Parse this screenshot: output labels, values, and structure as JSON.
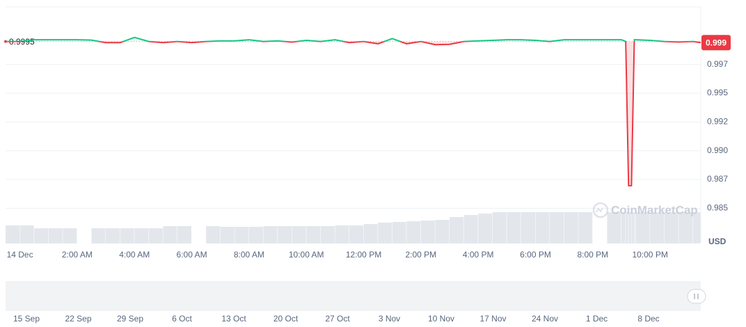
{
  "chart_data": {
    "type": "line",
    "x": [
      -0.5,
      0,
      0.5,
      1,
      1.5,
      2,
      2.5,
      3,
      3.5,
      4,
      4.5,
      5,
      5.5,
      6,
      6.5,
      7,
      7.5,
      8,
      8.5,
      9,
      9.5,
      10,
      10.5,
      11,
      11.5,
      12,
      12.5,
      13,
      13.5,
      14,
      14.5,
      15,
      15.5,
      16,
      16.5,
      17,
      17.5,
      18,
      18.5,
      19,
      19.5,
      20,
      20.5,
      21,
      21.15,
      21.25,
      21.35,
      21.45,
      21.5,
      22,
      22.5,
      23,
      23.5,
      23.77
    ],
    "values": [
      0.9995,
      0.9995,
      0.99965,
      0.99965,
      0.99965,
      0.99965,
      0.99962,
      0.9994,
      0.9994,
      0.99985,
      0.9995,
      0.9994,
      0.9995,
      0.9994,
      0.9995,
      0.99955,
      0.99955,
      0.99965,
      0.9995,
      0.99955,
      0.99945,
      0.9996,
      0.9995,
      0.99965,
      0.9994,
      0.9995,
      0.9993,
      0.99975,
      0.9993,
      0.9995,
      0.99922,
      0.99925,
      0.9995,
      0.99955,
      0.9996,
      0.99965,
      0.99965,
      0.9996,
      0.9995,
      0.99965,
      0.99965,
      0.99965,
      0.99965,
      0.99965,
      0.9995,
      0.98697,
      0.98697,
      0.99965,
      0.99965,
      0.9996,
      0.9995,
      0.99945,
      0.9995,
      0.9994
    ],
    "volume": {
      "color": "#e3e7ec",
      "ylim": [
        0,
        100
      ],
      "values": [
        26,
        26,
        22,
        22,
        22,
        0,
        22,
        22,
        22,
        22,
        22,
        25,
        25,
        0,
        25,
        24,
        24,
        24,
        25,
        25,
        25,
        25,
        25,
        26,
        26,
        28,
        30,
        31,
        32,
        33,
        34,
        38,
        41,
        43,
        45,
        45,
        45,
        45,
        45,
        45,
        45,
        0,
        45,
        45,
        45,
        45,
        45,
        45,
        45,
        45,
        45,
        45,
        45,
        45
      ]
    },
    "up_color": "#16c784",
    "down_color": "#ea3943",
    "baseline": 0.9995,
    "last_price": {
      "value": 0.9994,
      "label": "0.999"
    },
    "xlim": [
      -0.5,
      23.77
    ],
    "xticks": [
      {
        "value": 0,
        "label": "14 Dec"
      },
      {
        "value": 2,
        "label": "2:00 AM"
      },
      {
        "value": 4,
        "label": "4:00 AM"
      },
      {
        "value": 6,
        "label": "6:00 AM"
      },
      {
        "value": 8,
        "label": "8:00 AM"
      },
      {
        "value": 10,
        "label": "10:00 AM"
      },
      {
        "value": 12,
        "label": "12:00 PM"
      },
      {
        "value": 14,
        "label": "2:00 PM"
      },
      {
        "value": 16,
        "label": "4:00 PM"
      },
      {
        "value": 18,
        "label": "6:00 PM"
      },
      {
        "value": 20,
        "label": "8:00 PM"
      },
      {
        "value": 22,
        "label": "10:00 PM"
      }
    ],
    "ylim": [
      0.982,
      1.0025
    ],
    "yticks": [
      {
        "value": 0.9975,
        "label": "0.997"
      },
      {
        "value": 0.995,
        "label": "0.995"
      },
      {
        "value": 0.9925,
        "label": "0.992"
      },
      {
        "value": 0.99,
        "label": "0.990"
      },
      {
        "value": 0.9875,
        "label": "0.987"
      },
      {
        "value": 0.985,
        "label": "0.985"
      }
    ],
    "y_unit": "USD",
    "watermark": "CoinMarketCap",
    "grid": true,
    "navigator": [
      "15 Sep",
      "22 Sep",
      "29 Sep",
      "6 Oct",
      "13 Oct",
      "20 Oct",
      "27 Oct",
      "3 Nov",
      "10 Nov",
      "17 Nov",
      "24 Nov",
      "1 Dec",
      "8 Dec"
    ]
  }
}
